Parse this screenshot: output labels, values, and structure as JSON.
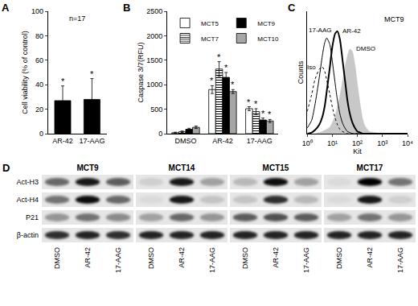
{
  "chart_data": [
    {
      "label": "A",
      "type": "bar",
      "categories": [
        "AR-42",
        "17-AAG"
      ],
      "values": [
        27,
        28
      ],
      "errors": [
        12,
        17
      ],
      "significant": [
        true,
        true
      ],
      "significance_label": "*",
      "color": "#000000",
      "annotation": "n=17",
      "ylabel": "Cell viability (% of control)",
      "ylim": [
        0,
        100
      ],
      "yticks": [
        0,
        20,
        40,
        60,
        80,
        100
      ]
    },
    {
      "label": "B",
      "type": "bar",
      "categories": [
        "DMSO",
        "AR-42",
        "17-AAG"
      ],
      "ylabel": "Caspase 3/7(RFU)",
      "ylim": [
        0,
        2500
      ],
      "yticks": [
        0,
        500,
        1000,
        1500,
        2000,
        2500
      ],
      "legend": "top left",
      "significance_label": "*",
      "series": [
        {
          "name": "MCT5",
          "color": "#ffffff",
          "values": [
            20,
            900,
            510
          ],
          "errors": [
            10,
            80,
            40
          ],
          "significant": [
            false,
            true,
            true
          ]
        },
        {
          "name": "MCT7",
          "color": "#ffffff",
          "marker": "striped",
          "values": [
            40,
            1320,
            450
          ],
          "errors": [
            15,
            150,
            60
          ],
          "significant": [
            false,
            true,
            true
          ]
        },
        {
          "name": "MCT9",
          "color": "#000000",
          "values": [
            90,
            1150,
            280
          ],
          "errors": [
            20,
            100,
            40
          ],
          "significant": [
            false,
            true,
            true
          ]
        },
        {
          "name": "MCT10",
          "color": "#a6a6a6",
          "values": [
            130,
            860,
            260
          ],
          "errors": [
            25,
            40,
            30
          ],
          "significant": [
            false,
            true,
            true
          ]
        }
      ]
    },
    {
      "label": "C",
      "type": "line",
      "xlabel": "Kit",
      "ylabel": "Counts",
      "annotation": "MCT9",
      "log": "x",
      "tick_labels": "x",
      "xlim": [
        1,
        10000
      ],
      "xticks": [
        {
          "value": 1,
          "label": "10⁰"
        },
        {
          "value": 10,
          "label": "10¹"
        },
        {
          "value": 100,
          "label": "10²"
        },
        {
          "value": 1000,
          "label": "10³"
        },
        {
          "value": 10000,
          "label": "10⁴"
        }
      ],
      "ylim": [
        0,
        110
      ],
      "x": [
        1,
        1.5,
        2,
        3,
        4,
        5,
        6,
        8,
        10,
        13,
        16,
        20,
        25,
        32,
        40,
        50,
        63,
        80,
        100,
        130,
        160,
        200,
        300,
        500,
        1000,
        10000
      ],
      "series": [
        {
          "name": "DMSO",
          "type": "area",
          "color": "#c8c8c8",
          "values": [
            0,
            0,
            0,
            1,
            2,
            3,
            4,
            6,
            10,
            16,
            24,
            34,
            46,
            60,
            70,
            76,
            74,
            62,
            45,
            26,
            14,
            7,
            2,
            1,
            0,
            0
          ]
        },
        {
          "name": "Iso",
          "color": "#000000",
          "line_style": "dotted",
          "values": [
            20,
            35,
            48,
            58,
            60,
            56,
            48,
            35,
            24,
            14,
            8,
            4,
            2,
            1,
            0,
            0,
            0,
            0,
            0,
            0,
            0,
            0,
            0,
            0,
            0,
            0
          ]
        },
        {
          "name": "17-AAG",
          "color": "#000000",
          "line_style": "solid",
          "values": [
            5,
            12,
            25,
            50,
            70,
            82,
            86,
            80,
            65,
            45,
            30,
            18,
            10,
            5,
            2,
            1,
            0,
            0,
            0,
            0,
            0,
            0,
            0,
            0,
            0,
            0
          ]
        },
        {
          "name": "AR-42",
          "color": "#000000",
          "line_style": "thick",
          "values": [
            0,
            1,
            3,
            8,
            15,
            25,
            38,
            60,
            78,
            90,
            92,
            85,
            68,
            48,
            30,
            18,
            10,
            5,
            2,
            1,
            0,
            0,
            0,
            0,
            0,
            0
          ]
        }
      ]
    }
  ],
  "blot": {
    "label": "D",
    "rows": [
      "Act-H3",
      "Act-H4",
      "P21",
      "β-actin"
    ],
    "lanes": [
      "DMSO",
      "AR-42",
      "17-AAG"
    ],
    "blots": [
      {
        "name": "MCT9",
        "bands": [
          [
            0.55,
            0.9,
            0.6
          ],
          [
            0.5,
            0.95,
            0.55
          ],
          [
            0.35,
            0.5,
            0.4
          ],
          [
            0.8,
            0.85,
            0.8
          ]
        ]
      },
      {
        "name": "MCT14",
        "bands": [
          [
            0.1,
            0.9,
            0.3
          ],
          [
            0.05,
            0.9,
            0.15
          ],
          [
            0.3,
            0.55,
            0.35
          ],
          [
            0.85,
            0.85,
            0.85
          ]
        ]
      },
      {
        "name": "MCT15",
        "bands": [
          [
            0.2,
            0.95,
            0.3
          ],
          [
            0.15,
            0.8,
            0.2
          ],
          [
            0.6,
            0.65,
            0.6
          ],
          [
            0.85,
            0.85,
            0.85
          ]
        ]
      },
      {
        "name": "MCT17",
        "bands": [
          [
            0.05,
            1.0,
            0.5
          ],
          [
            0.05,
            0.9,
            0.1
          ],
          [
            0.3,
            0.5,
            0.35
          ],
          [
            0.85,
            0.85,
            0.85
          ]
        ]
      }
    ]
  }
}
